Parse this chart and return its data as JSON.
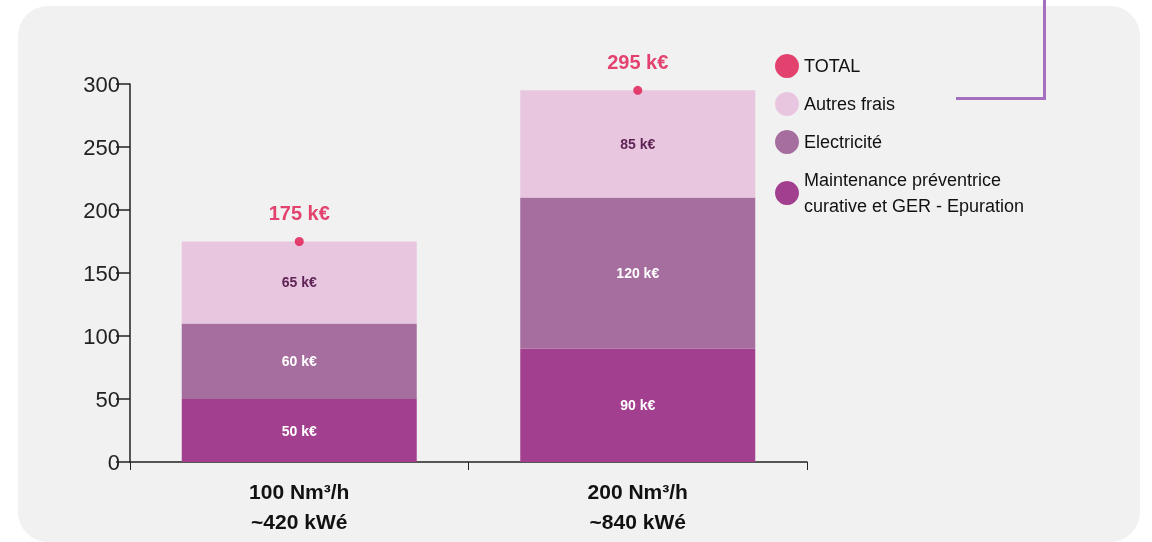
{
  "chart_data": {
    "type": "bar",
    "stacked": true,
    "categories": [
      "100 Nm³/h\n~420 kWé",
      "200 Nm³/h\n~840 kWé"
    ],
    "series": [
      {
        "name": "Maintenance préventrice\ncurative et GER - Epuration",
        "color": "#a2408f",
        "values": [
          50,
          90
        ],
        "value_labels": [
          "50 k€",
          "90 k€"
        ]
      },
      {
        "name": "Electricité",
        "color": "#a66d9f",
        "values": [
          60,
          120
        ],
        "value_labels": [
          "60 k€",
          "120 k€"
        ]
      },
      {
        "name": "Autres frais",
        "color": "#e9c6df",
        "values": [
          65,
          85
        ],
        "value_labels": [
          "65 k€",
          "85 k€"
        ]
      },
      {
        "name": "TOTAL",
        "type": "scatter",
        "color": "#e0174f",
        "x": [
          "100 Nm³/h\n~420 kWé",
          "200 Nm³/h\n~840 kWé"
        ],
        "values": [
          175,
          295
        ],
        "value_labels": [
          "175 k€",
          "295 k€"
        ]
      }
    ],
    "ylim": [
      0,
      300
    ],
    "yticks": [
      0,
      50,
      100,
      150,
      200,
      250,
      300
    ],
    "grid": false,
    "legend": "top right",
    "marker": "circle"
  }
}
